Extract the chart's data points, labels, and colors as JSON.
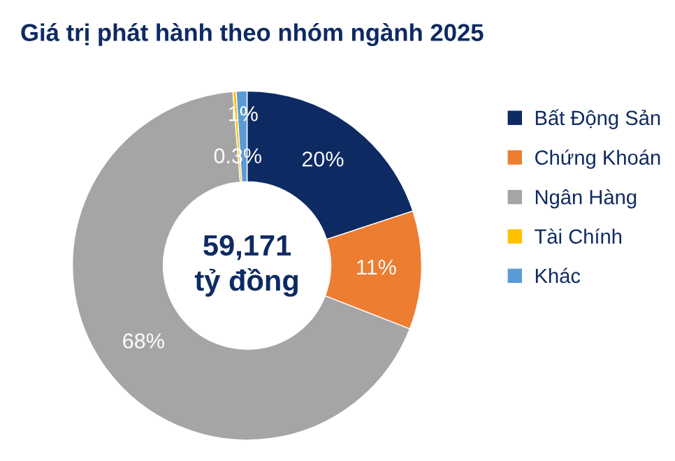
{
  "chart_data": {
    "type": "donut",
    "title": "Giá trị phát hành theo nhóm ngành 2025",
    "categories": [
      "Bất Động Sản",
      "Chứng Khoán",
      "Ngân Hàng",
      "Tài Chính",
      "Khác"
    ],
    "values": [
      20,
      11,
      68,
      0.3,
      1
    ],
    "colors": [
      "#0e2a63",
      "#ed7d31",
      "#a5a5a5",
      "#ffc000",
      "#5b9bd5"
    ],
    "value_labels": [
      "20%",
      "11%",
      "68%",
      "0.3%",
      "1%"
    ],
    "annotations": [
      "59,171\ntỷ đồng"
    ],
    "legend": "right"
  }
}
